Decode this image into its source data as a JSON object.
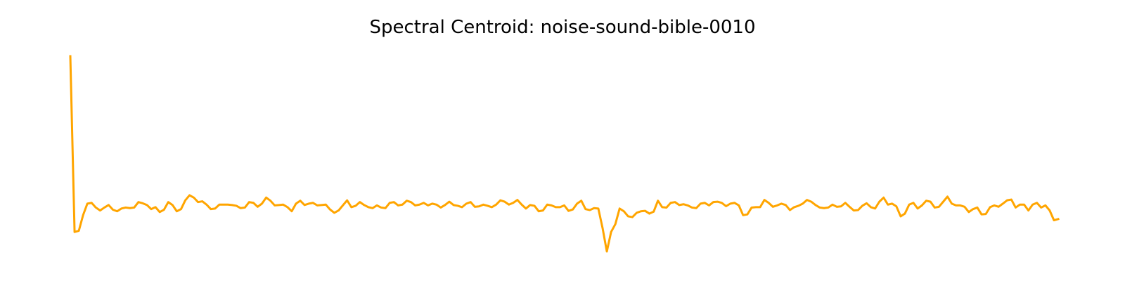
{
  "chart_data": {
    "type": "line",
    "title": "Spectral Centroid: noise-sound-bible-0010",
    "xlabel": "",
    "ylabel": "",
    "grid": false,
    "axes_visible": false,
    "line_color": "#FFA500",
    "series": [
      {
        "values": [
          1.0,
          0.1,
          0.106,
          0.186,
          0.245,
          0.249,
          0.225,
          0.21,
          0.225,
          0.238,
          0.214,
          0.206,
          0.22,
          0.225,
          0.222,
          0.225,
          0.253,
          0.247,
          0.238,
          0.217,
          0.227,
          0.202,
          0.214,
          0.253,
          0.238,
          0.206,
          0.217,
          0.262,
          0.288,
          0.276,
          0.253,
          0.257,
          0.24,
          0.217,
          0.22,
          0.24,
          0.24,
          0.24,
          0.238,
          0.234,
          0.222,
          0.225,
          0.253,
          0.249,
          0.229,
          0.245,
          0.276,
          0.26,
          0.236,
          0.238,
          0.24,
          0.227,
          0.206,
          0.245,
          0.26,
          0.238,
          0.245,
          0.249,
          0.236,
          0.238,
          0.24,
          0.215,
          0.198,
          0.21,
          0.236,
          0.262,
          0.227,
          0.234,
          0.253,
          0.238,
          0.227,
          0.222,
          0.236,
          0.225,
          0.222,
          0.249,
          0.253,
          0.236,
          0.24,
          0.26,
          0.253,
          0.236,
          0.24,
          0.249,
          0.236,
          0.245,
          0.24,
          0.225,
          0.238,
          0.255,
          0.238,
          0.234,
          0.227,
          0.245,
          0.253,
          0.229,
          0.231,
          0.24,
          0.234,
          0.227,
          0.24,
          0.262,
          0.255,
          0.24,
          0.249,
          0.264,
          0.24,
          0.22,
          0.238,
          0.234,
          0.206,
          0.21,
          0.24,
          0.236,
          0.227,
          0.227,
          0.236,
          0.208,
          0.215,
          0.245,
          0.26,
          0.217,
          0.212,
          0.222,
          0.22,
          0.12,
          0.0,
          0.1,
          0.14,
          0.22,
          0.206,
          0.18,
          0.176,
          0.198,
          0.206,
          0.208,
          0.194,
          0.204,
          0.26,
          0.227,
          0.225,
          0.249,
          0.253,
          0.238,
          0.242,
          0.236,
          0.225,
          0.222,
          0.245,
          0.249,
          0.236,
          0.253,
          0.255,
          0.249,
          0.232,
          0.245,
          0.249,
          0.236,
          0.186,
          0.19,
          0.225,
          0.227,
          0.227,
          0.264,
          0.249,
          0.229,
          0.236,
          0.245,
          0.238,
          0.212,
          0.227,
          0.234,
          0.245,
          0.264,
          0.255,
          0.238,
          0.225,
          0.222,
          0.225,
          0.24,
          0.229,
          0.231,
          0.249,
          0.229,
          0.21,
          0.212,
          0.234,
          0.247,
          0.227,
          0.22,
          0.255,
          0.276,
          0.24,
          0.245,
          0.231,
          0.18,
          0.194,
          0.24,
          0.249,
          0.22,
          0.236,
          0.26,
          0.255,
          0.225,
          0.229,
          0.255,
          0.281,
          0.245,
          0.236,
          0.236,
          0.229,
          0.202,
          0.217,
          0.225,
          0.19,
          0.192,
          0.227,
          0.236,
          0.229,
          0.245,
          0.262,
          0.266,
          0.225,
          0.24,
          0.24,
          0.21,
          0.24,
          0.249,
          0.225,
          0.236,
          0.21,
          0.16,
          0.166
        ]
      }
    ]
  }
}
